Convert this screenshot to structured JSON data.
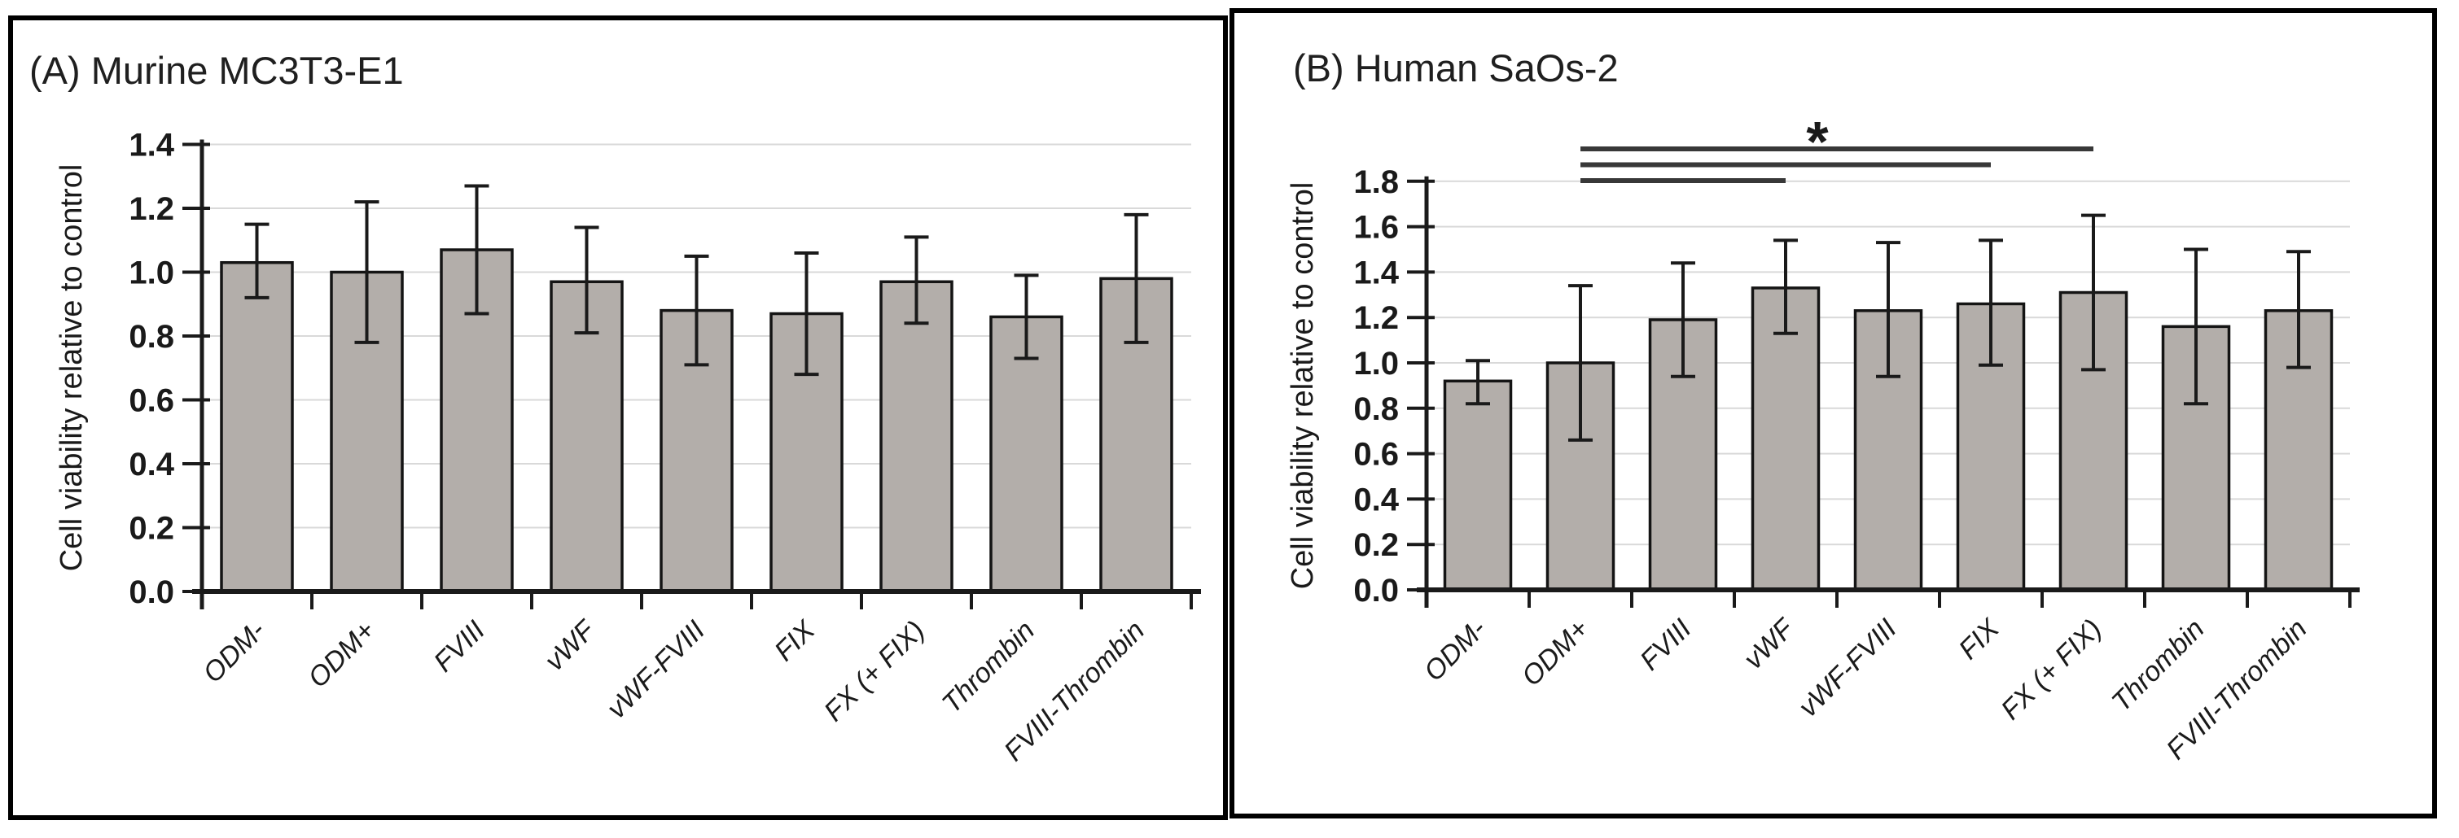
{
  "figure": {
    "description": "Two-panel bar chart figure of cell viability relative to control",
    "significance_marker": "*"
  },
  "colors": {
    "bar_fill": "#b3aeaa",
    "bar_border": "#141414",
    "grid": "#d9d9d9",
    "axis": "#1a1a1a",
    "error_bar": "#1a1a1a",
    "sig_line": "#383838",
    "frame": "#000000"
  },
  "chart_data": [
    {
      "type": "bar",
      "title": "(A) Murine MC3T3-E1",
      "ylabel": "Cell viability relative to control",
      "xlabel": "",
      "categories": [
        "ODM-",
        "ODM+",
        "FVIII",
        "vWF",
        "vWF-FVIII",
        "FIX",
        "FX (+ FIX)",
        "Thrombin",
        "FVIII-Thrombin"
      ],
      "values": [
        1.03,
        1.0,
        1.07,
        0.97,
        0.88,
        0.87,
        0.97,
        0.86,
        0.98
      ],
      "error_low": [
        0.92,
        0.78,
        0.87,
        0.81,
        0.71,
        0.68,
        0.84,
        0.73,
        0.78
      ],
      "error_high": [
        1.15,
        1.22,
        1.27,
        1.14,
        1.05,
        1.06,
        1.11,
        0.99,
        1.18
      ],
      "ylim": [
        0.0,
        1.4
      ],
      "ytick_labels": [
        "0.0",
        "0.2",
        "0.4",
        "0.6",
        "0.8",
        "1.0",
        "1.2",
        "1.4"
      ],
      "grid": true,
      "legend": null
    },
    {
      "type": "bar",
      "title": "(B) Human SaOs-2",
      "ylabel": "Cell viability relative to control",
      "xlabel": "",
      "categories": [
        "ODM-",
        "ODM+",
        "FVIII",
        "vWF",
        "vWF-FVIII",
        "FIX",
        "FX (+ FIX)",
        "Thrombin",
        "FVIII-Thrombin"
      ],
      "values": [
        0.92,
        1.0,
        1.19,
        1.33,
        1.23,
        1.26,
        1.31,
        1.16,
        1.23
      ],
      "error_low": [
        0.82,
        0.66,
        0.94,
        1.13,
        0.94,
        0.99,
        0.97,
        0.82,
        0.98
      ],
      "error_high": [
        1.01,
        1.34,
        1.44,
        1.54,
        1.53,
        1.54,
        1.65,
        1.5,
        1.49
      ],
      "ylim": [
        0.0,
        1.8
      ],
      "ytick_labels": [
        "0.0",
        "0.2",
        "0.4",
        "0.6",
        "0.8",
        "1.0",
        "1.2",
        "1.4",
        "1.6",
        "1.8"
      ],
      "grid": true,
      "legend": null,
      "significance": {
        "label": "*",
        "comparisons": [
          {
            "from": "ODM+",
            "to": "FX (+ FIX)"
          },
          {
            "from": "ODM+",
            "to": "FIX"
          },
          {
            "from": "ODM+",
            "to": "vWF"
          }
        ]
      }
    }
  ]
}
